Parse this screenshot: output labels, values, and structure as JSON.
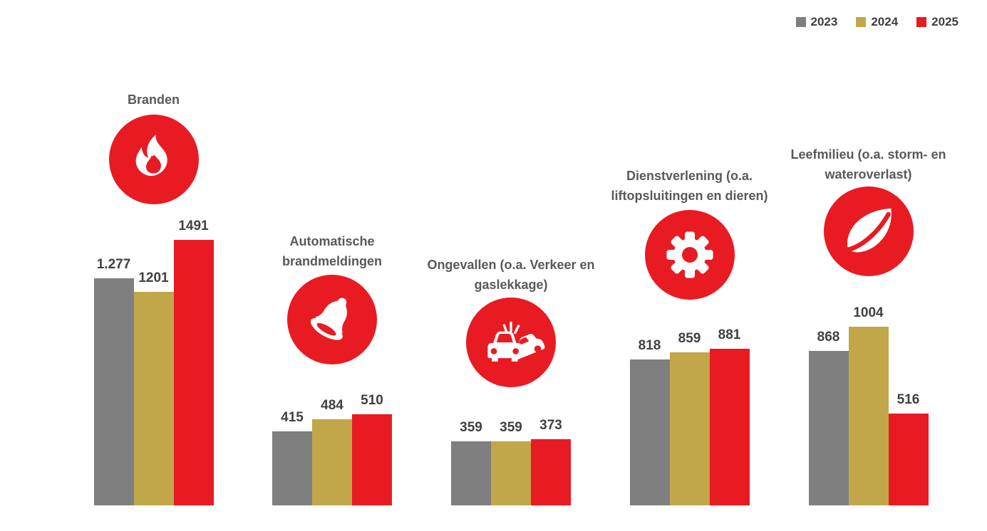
{
  "colors": {
    "gray": "#7F7F7F",
    "gold": "#C1A74A",
    "red": "#E81B23",
    "title_text": "#595959",
    "value_text": "#404040"
  },
  "legend": {
    "items": [
      {
        "label": "2023",
        "color": "#7F7F7F"
      },
      {
        "label": "2024",
        "color": "#C1A74A"
      },
      {
        "label": "2025",
        "color": "#E81B23"
      }
    ]
  },
  "groups": [
    {
      "name": "branden",
      "icon": "flame-icon",
      "title_lines": [
        "Branden"
      ]
    },
    {
      "name": "automatische-brandmeldingen",
      "icon": "bell-icon",
      "title_lines": [
        "Automatische",
        "brandmeldingen"
      ]
    },
    {
      "name": "ongevallen",
      "icon": "car-crash-icon",
      "title_lines": [
        "Ongevallen (o.a. Verkeer en",
        "gaslekkage)"
      ]
    },
    {
      "name": "dienstverlening",
      "icon": "gear-icon",
      "title_lines": [
        "Dienstverlening (o.a.",
        "liftopsluitingen en dieren)"
      ]
    },
    {
      "name": "leefmilieu",
      "icon": "leaf-icon",
      "title_lines": [
        "Leefmilieu (o.a. storm- en",
        "wateroverlast)"
      ]
    }
  ],
  "chart_data": {
    "type": "bar",
    "categories": [
      "Branden",
      "Automatische brandmeldingen",
      "Ongevallen (o.a. Verkeer en gaslekkage)",
      "Dienstverlening (o.a. liftopsluitingen en dieren)",
      "Leefmilieu (o.a. storm- en wateroverlast)"
    ],
    "series": [
      {
        "name": "2023",
        "color": "#7F7F7F",
        "values": [
          1277,
          415,
          359,
          818,
          868
        ],
        "labels": [
          "1.277",
          "415",
          "359",
          "818",
          "868"
        ]
      },
      {
        "name": "2024",
        "color": "#C1A74A",
        "values": [
          1201,
          484,
          359,
          859,
          1004
        ],
        "labels": [
          "1201",
          "484",
          "359",
          "859",
          "1004"
        ]
      },
      {
        "name": "2025",
        "color": "#E81B23",
        "values": [
          1491,
          510,
          373,
          881,
          516
        ],
        "labels": [
          "1491",
          "510",
          "373",
          "881",
          "516"
        ]
      }
    ],
    "ylim": [
      0,
      1500
    ],
    "grid": false,
    "axes_shown": false,
    "value_labels_shown": true,
    "legend_position": "top-right"
  }
}
